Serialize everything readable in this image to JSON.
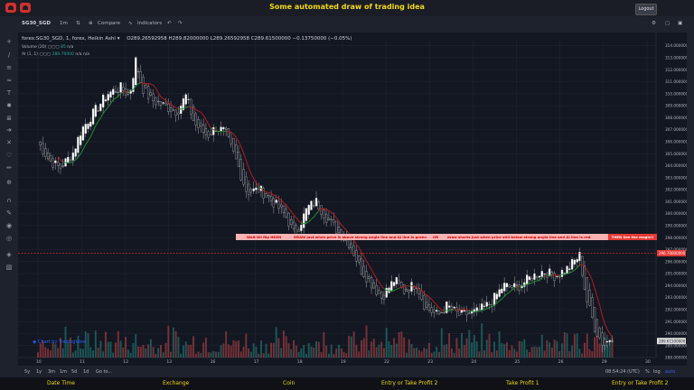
{
  "app": {
    "title": "Some automated draw of trading idea",
    "logout_label": "Logout"
  },
  "toolbar": {
    "symbol": "SG30_SGD",
    "interval": "1m",
    "compare_label": "Compare",
    "indicators_label": "Indicators"
  },
  "legend": {
    "symbol_line": "forex:SG30_SGD, 1, forex, Heikin Ashi",
    "ohlc": "O289.26592958  H289.82000000  L289.26592958  C289.61500000  −0.13750000 (−0.05%)",
    "volume_label": "Volume (20)",
    "volume_value": "85",
    "volume_na": "n/a",
    "ai_label": "AI (1, 1)",
    "ai_value": "289.70000",
    "ai_na1": "n/a",
    "ai_na2": "n/a"
  },
  "banner": {
    "text1": "Wait till flip HKEN",
    "text2": "DRAW just when price is above strong angle line and AI line is green",
    "text3": "OR",
    "text4": "draw shorts just when price still below strong angle line and AI line is red",
    "tag": "THEN See the magic!!"
  },
  "axis": {
    "prices": [
      "314.000000",
      "313.000000",
      "312.000000",
      "311.000000",
      "310.000000",
      "309.000000",
      "308.000000",
      "307.000000",
      "306.000000",
      "305.000000",
      "304.000000",
      "303.000000",
      "302.000000",
      "301.000000",
      "300.000000",
      "299.000000",
      "298.000000",
      "297.000000",
      "296.000000",
      "295.000000",
      "294.000000",
      "293.000000",
      "292.000000",
      "291.000000",
      "290.000000",
      "289.000000",
      "288.000000"
    ],
    "current_price": "289.61500000",
    "line_price": "296.70000000",
    "dates": [
      "10",
      "11",
      "12",
      "13",
      "16",
      "17",
      "18",
      "19",
      "22",
      "23",
      "24",
      "25",
      "26",
      "29",
      "30"
    ]
  },
  "tv_badge": "Chart by TradingView",
  "time_bar": {
    "ranges": [
      "5y",
      "1y",
      "3m",
      "1m",
      "5d",
      "1d",
      "Go to..."
    ],
    "clock": "08:54:24 (UTC)",
    "pct": "%",
    "log": "log",
    "auto": "auto"
  },
  "bottom": {
    "items": [
      "Date Time",
      "Exchange",
      "Coin",
      "Entry or Take Profit 2",
      "Take Profit 1",
      "Entry or Take Profit 2"
    ]
  },
  "colors": {
    "accent": "#f5d90a",
    "up": "#26a69a",
    "down": "#ef5350",
    "banner_bg": "#ffb3b3"
  },
  "chart_data": {
    "type": "candlestick",
    "style": "Heikin Ashi",
    "y_range": [
      288,
      314.5
    ],
    "x_categories": [
      "10",
      "11",
      "12",
      "13",
      "16",
      "17",
      "18",
      "19",
      "22",
      "23",
      "24",
      "25",
      "26",
      "29",
      "30"
    ],
    "close_path": [
      [
        0,
        306
      ],
      [
        0.25,
        304.5
      ],
      [
        0.5,
        303.8
      ],
      [
        0.8,
        305
      ],
      [
        1,
        307
      ],
      [
        1.3,
        308.5
      ],
      [
        1.6,
        310
      ],
      [
        1.9,
        310.5
      ],
      [
        2.1,
        309.8
      ],
      [
        2.25,
        312.8
      ],
      [
        2.4,
        310.5
      ],
      [
        2.6,
        309.5
      ],
      [
        2.9,
        309
      ],
      [
        3.2,
        308.5
      ],
      [
        3.4,
        309.8
      ],
      [
        3.6,
        307.5
      ],
      [
        3.9,
        306.5
      ],
      [
        4.1,
        307.2
      ],
      [
        4.3,
        306.8
      ],
      [
        4.6,
        304
      ],
      [
        4.8,
        301.8
      ],
      [
        5.1,
        302
      ],
      [
        5.4,
        301
      ],
      [
        5.7,
        299.8
      ],
      [
        5.9,
        298.2
      ],
      [
        6.2,
        300.5
      ],
      [
        6.4,
        301
      ],
      [
        6.6,
        299.8
      ],
      [
        6.9,
        298.5
      ],
      [
        7.2,
        297.3
      ],
      [
        7.4,
        295.5
      ],
      [
        7.7,
        294
      ],
      [
        7.9,
        293
      ],
      [
        8.2,
        294.5
      ],
      [
        8.4,
        293.5
      ],
      [
        8.7,
        294.2
      ],
      [
        8.9,
        292.2
      ],
      [
        9.2,
        291.5
      ],
      [
        9.4,
        292.3
      ],
      [
        9.7,
        291.5
      ],
      [
        10.1,
        291.8
      ],
      [
        10.4,
        292.5
      ],
      [
        10.7,
        294
      ],
      [
        11,
        293.8
      ],
      [
        11.3,
        294.6
      ],
      [
        11.6,
        295.2
      ],
      [
        11.9,
        294.8
      ],
      [
        12.2,
        295.5
      ],
      [
        12.45,
        296.5
      ],
      [
        12.6,
        293
      ],
      [
        12.8,
        290.5
      ],
      [
        13,
        289
      ],
      [
        13.2,
        289.8
      ]
    ],
    "horizontal_line": 296.7,
    "volume_max": 85
  }
}
